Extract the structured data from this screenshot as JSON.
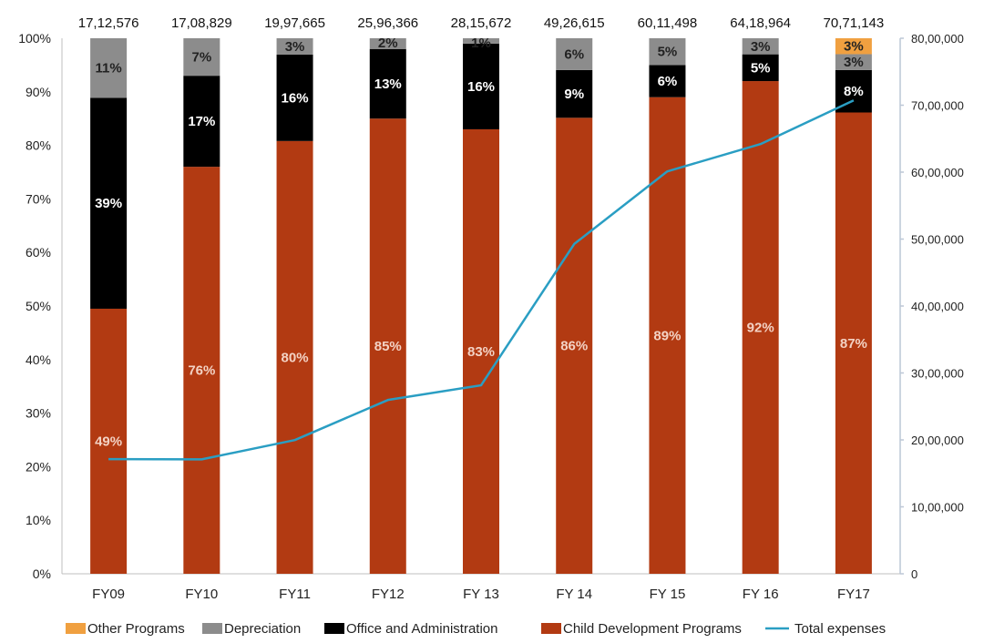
{
  "chart_data": {
    "type": "bar",
    "stacked": true,
    "categories": [
      "FY09",
      "FY10",
      "FY11",
      "FY12",
      "FY 13",
      "FY 14",
      "FY 15",
      "FY 16",
      "FY17"
    ],
    "totals_labels": [
      "17,12,576",
      "17,08,829",
      "19,97,665",
      "25,96,366",
      "28,15,672",
      "49,26,615",
      "60,11,498",
      "64,18,964",
      "70,71,143"
    ],
    "series": [
      {
        "name": "Child Development Programs",
        "color": "#b23a12",
        "label_color": "#f3d2c4",
        "values": [
          49,
          76,
          80,
          85,
          83,
          86,
          89,
          92,
          87
        ],
        "labels": [
          "49%",
          "76%",
          "80%",
          "85%",
          "83%",
          "86%",
          "89%",
          "92%",
          "87%"
        ]
      },
      {
        "name": "Office and Administration",
        "color": "#000000",
        "label_color": "#ffffff",
        "values": [
          39,
          17,
          16,
          13,
          16,
          9,
          6,
          5,
          8
        ],
        "labels": [
          "39%",
          "17%",
          "16%",
          "13%",
          "16%",
          "9%",
          "6%",
          "5%",
          "8%"
        ]
      },
      {
        "name": "Depreciation",
        "color": "#8c8c8c",
        "label_color": "#222222",
        "values": [
          11,
          7,
          3,
          2,
          1,
          6,
          5,
          3,
          3
        ],
        "labels": [
          "11%",
          "7%",
          "3%",
          "2%",
          "1%",
          "6%",
          "5%",
          "3%",
          "3%"
        ]
      },
      {
        "name": "Other Programs",
        "color": "#f0a040",
        "label_color": "#222222",
        "values": [
          0,
          0,
          0,
          0,
          0,
          0,
          0,
          0,
          3
        ],
        "labels": [
          "",
          "",
          "",
          "",
          "",
          "",
          "",
          "",
          "3%"
        ]
      }
    ],
    "line_series": {
      "name": "Total expenses",
      "color": "#2a9ec3",
      "axis": "right",
      "values": [
        1712576,
        1708829,
        1997665,
        2596366,
        2815672,
        4926615,
        6011498,
        6418964,
        7071143
      ]
    },
    "y_left": {
      "range": [
        0,
        100
      ],
      "tick_labels": [
        "0%",
        "10%",
        "20%",
        "30%",
        "40%",
        "50%",
        "60%",
        "70%",
        "80%",
        "90%",
        "100%"
      ]
    },
    "y_right": {
      "range": [
        0,
        8000000
      ],
      "tick_labels": [
        "0",
        "10,00,000",
        "20,00,000",
        "30,00,000",
        "40,00,000",
        "50,00,000",
        "60,00,000",
        "70,00,000",
        "80,00,000"
      ]
    },
    "legend_position": "bottom",
    "legend_order": [
      "Other Programs",
      "Depreciation",
      "Office and Administration",
      "Child Development Programs",
      "Total expenses"
    ],
    "grid": false
  }
}
